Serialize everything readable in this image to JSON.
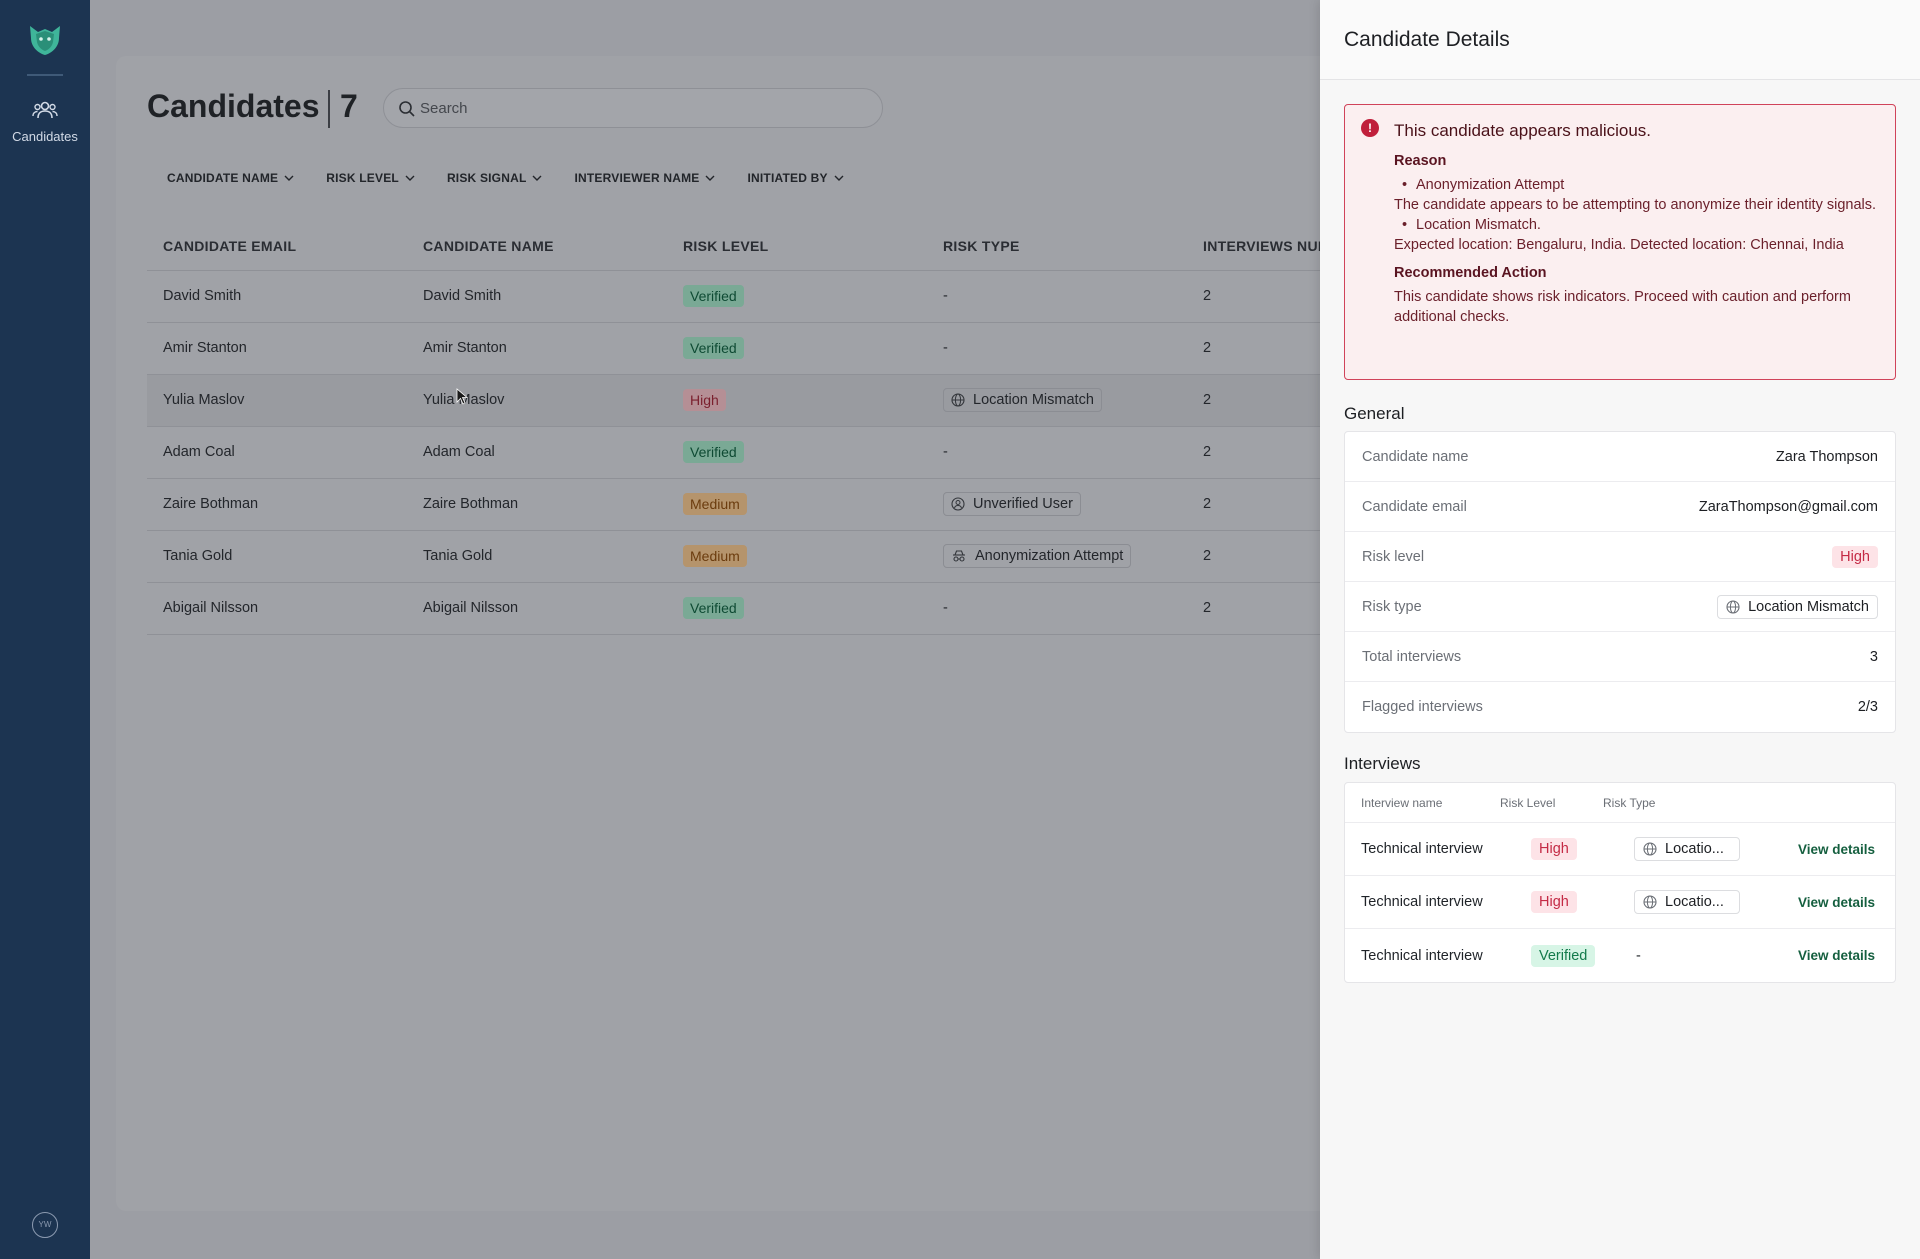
{
  "sidebar": {
    "nav_label": "Candidates",
    "avatar_initials": "YW"
  },
  "main": {
    "title": "Candidates",
    "count": "7",
    "search_placeholder": "Search",
    "filters": [
      "CANDIDATE NAME",
      "RISK LEVEL",
      "RISK SIGNAL",
      "INTERVIEWER NAME",
      "INITIATED BY"
    ],
    "columns": [
      "CANDIDATE EMAIL",
      "CANDIDATE NAME",
      "RISK LEVEL",
      "RISK TYPE",
      "INTERVIEWS NUM"
    ],
    "rows": [
      {
        "email": "David Smith",
        "name": "David Smith",
        "risk_level": "Verified",
        "risk_type": "-",
        "interviews": "2"
      },
      {
        "email": "Amir Stanton",
        "name": "Amir Stanton",
        "risk_level": "Verified",
        "risk_type": "-",
        "interviews": "2"
      },
      {
        "email": "Yulia Maslov",
        "name": "Yulia Maslov",
        "risk_level": "High",
        "risk_type": "Location Mismatch",
        "interviews": "2"
      },
      {
        "email": "Adam Coal",
        "name": "Adam Coal",
        "risk_level": "Verified",
        "risk_type": "-",
        "interviews": "2"
      },
      {
        "email": "Zaire Bothman",
        "name": "Zaire Bothman",
        "risk_level": "Medium",
        "risk_type": "Unverified User",
        "interviews": "2"
      },
      {
        "email": "Tania Gold",
        "name": "Tania Gold",
        "risk_level": "Medium",
        "risk_type": "Anonymization Attempt",
        "interviews": "2"
      },
      {
        "email": "Abigail Nilsson",
        "name": "Abigail Nilsson",
        "risk_level": "Verified",
        "risk_type": "-",
        "interviews": "2"
      }
    ]
  },
  "panel": {
    "title": "Candidate Details",
    "alert": {
      "title": "This candidate appears malicious.",
      "reason_heading": "Reason",
      "reason_1": "Anonymization Attempt",
      "reason_1_text": "The candidate appears to be attempting to anonymize their identity signals.",
      "reason_2": "Location Mismatch.",
      "reason_2_text": "Expected location: Bengaluru, India. Detected location: Chennai, India",
      "action_heading": "Recommended Action",
      "action_text": "This candidate shows risk indicators. Proceed with caution and perform additional checks."
    },
    "general_heading": "General",
    "general": {
      "name_label": "Candidate name",
      "name": "Zara Thompson",
      "email_label": "Candidate email",
      "email": "ZaraThompson@gmail.com",
      "risk_level_label": "Risk level",
      "risk_level": "High",
      "risk_type_label": "Risk type",
      "risk_type": "Location Mismatch",
      "total_label": "Total interviews",
      "total": "3",
      "flagged_label": "Flagged interviews",
      "flagged": "2/3"
    },
    "interviews_heading": "Interviews",
    "interview_columns": [
      "Interview name",
      "Risk Level",
      "Risk Type"
    ],
    "interviews": [
      {
        "name": "Technical interview",
        "risk_level": "High",
        "risk_type": "Locatio...",
        "action": "View details"
      },
      {
        "name": "Technical interview",
        "risk_level": "High",
        "risk_type": "Locatio...",
        "action": "View details"
      },
      {
        "name": "Technical interview",
        "risk_level": "Verified",
        "risk_type": "-",
        "action": "View details"
      }
    ]
  },
  "colors": {
    "sidebar": "#1c3451",
    "alert_border": "#d0435a",
    "high": "#c42a45",
    "verified": "#137a4b",
    "link": "#155f3f"
  }
}
